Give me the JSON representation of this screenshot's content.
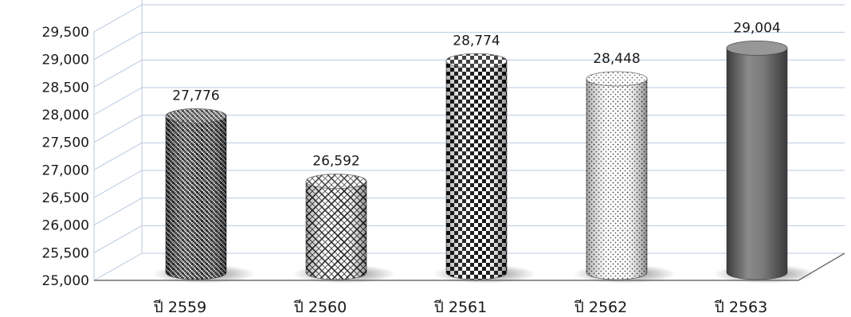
{
  "chart_data": {
    "type": "bar",
    "style": "3d-cylinder",
    "categories": [
      "ปี 2559",
      "ปี 2560",
      "ปี 2561",
      "ปี 2562",
      "ปี 2563"
    ],
    "values": [
      27776,
      26592,
      28774,
      28448,
      29004
    ],
    "data_labels": [
      "27,776",
      "26,592",
      "28,774",
      "28,448",
      "29,004"
    ],
    "yticks": [
      "25,000",
      "25,500",
      "26,000",
      "26,500",
      "27,000",
      "27,500",
      "28,000",
      "28,500",
      "29,000",
      "29,500"
    ],
    "ylim": [
      25000,
      29500
    ],
    "title": "",
    "xlabel": "",
    "ylabel": "",
    "grid": true,
    "legend": "none",
    "colors": {
      "gridline": "#b7c9df",
      "floor": "#6e6e6e",
      "bar_dark": "#111111",
      "bar_light": "#ffffff",
      "last_bar_fill": "#6f6f6f"
    }
  }
}
